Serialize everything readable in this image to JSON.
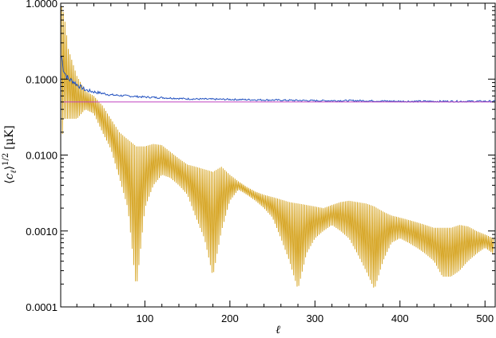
{
  "chart_data": {
    "type": "line",
    "title": "",
    "xlabel": "ℓ",
    "ylabel_parts": {
      "open": "⟨",
      "c": "c",
      "sub": "ℓ",
      "close": "⟩",
      "sup": "1/2",
      "unit": "[μK]"
    },
    "x_scale": "linear",
    "y_scale": "log",
    "xlim": [
      1,
      512
    ],
    "ylim": [
      0.0001,
      1.0
    ],
    "x_ticks": [
      100,
      200,
      300,
      400,
      500
    ],
    "x_tick_labels": [
      "100",
      "200",
      "300",
      "400",
      "500"
    ],
    "y_ticks": [
      0.0001,
      0.001,
      0.01,
      0.1,
      1.0
    ],
    "y_tick_labels": [
      "0.0001",
      "0.0010",
      "0.0100",
      "0.1000",
      "1.0000"
    ],
    "grid": false,
    "series": [
      {
        "color": "#d4a017",
        "style": "rapidly oscillating (comb) signal",
        "x": [
          2,
          5,
          10,
          20,
          30,
          40,
          50,
          60,
          70,
          80,
          90,
          100,
          110,
          120,
          130,
          140,
          150,
          160,
          170,
          180,
          190,
          200,
          210,
          220,
          230,
          240,
          250,
          260,
          270,
          280,
          290,
          300,
          310,
          320,
          330,
          340,
          350,
          360,
          370,
          380,
          390,
          400,
          410,
          420,
          430,
          440,
          450,
          460,
          470,
          480,
          490,
          500,
          510
        ],
        "upper": [
          0.9,
          0.7,
          0.25,
          0.11,
          0.07,
          0.06,
          0.045,
          0.03,
          0.02,
          0.016,
          0.013,
          0.013,
          0.014,
          0.0135,
          0.011,
          0.009,
          0.0075,
          0.007,
          0.0065,
          0.006,
          0.007,
          0.0055,
          0.0045,
          0.0038,
          0.0033,
          0.003,
          0.0028,
          0.0026,
          0.0024,
          0.0023,
          0.0022,
          0.0021,
          0.002,
          0.0022,
          0.0024,
          0.0025,
          0.0024,
          0.0023,
          0.0021,
          0.0018,
          0.0016,
          0.0015,
          0.0014,
          0.0013,
          0.0012,
          0.0011,
          0.0011,
          0.0011,
          0.0012,
          0.00115,
          0.001,
          0.0009,
          0.0008
        ],
        "lower": [
          0.015,
          0.03,
          0.03,
          0.03,
          0.04,
          0.035,
          0.02,
          0.012,
          0.005,
          0.002,
          0.00017,
          0.002,
          0.004,
          0.0055,
          0.005,
          0.004,
          0.003,
          0.0015,
          0.0008,
          0.00025,
          0.001,
          0.0025,
          0.0035,
          0.003,
          0.0025,
          0.002,
          0.0015,
          0.0008,
          0.0004,
          0.00017,
          0.0005,
          0.0008,
          0.001,
          0.0012,
          0.001,
          0.0008,
          0.0005,
          0.0003,
          0.00017,
          0.0004,
          0.0007,
          0.0008,
          0.0007,
          0.0006,
          0.0005,
          0.0004,
          0.00025,
          0.00025,
          0.0003,
          0.0004,
          0.0005,
          0.0006,
          0.0005
        ]
      },
      {
        "color": "#1f4fbf",
        "style": "noisy line",
        "x": [
          2,
          4,
          6,
          8,
          10,
          15,
          20,
          30,
          40,
          50,
          60,
          80,
          100,
          120,
          150,
          200,
          250,
          300,
          350,
          400,
          450,
          500,
          512
        ],
        "values": [
          0.2,
          0.14,
          0.12,
          0.11,
          0.1,
          0.095,
          0.085,
          0.072,
          0.068,
          0.065,
          0.062,
          0.06,
          0.058,
          0.057,
          0.055,
          0.054,
          0.053,
          0.052,
          0.052,
          0.051,
          0.051,
          0.051,
          0.051
        ]
      },
      {
        "color": "#c040c0",
        "style": "flat line",
        "x": [
          1,
          512
        ],
        "values": [
          0.05,
          0.05
        ]
      }
    ]
  }
}
